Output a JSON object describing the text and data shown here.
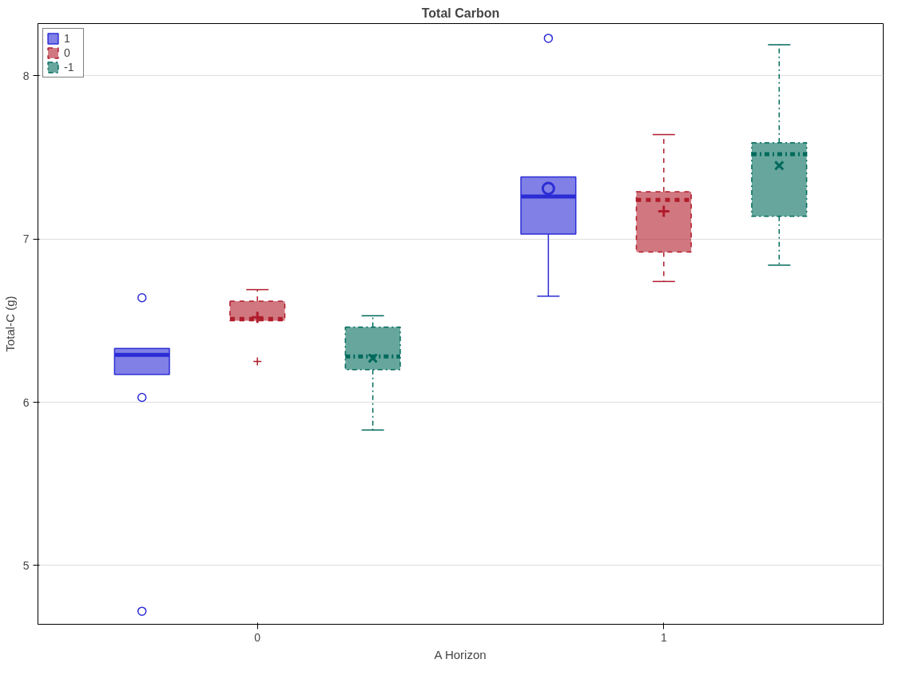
{
  "chart_data": {
    "type": "box",
    "title": "Total Carbon",
    "xlabel": "A Horizon",
    "ylabel": "Total-C (g)",
    "categories": [
      "0",
      "1"
    ],
    "ylim": [
      4.64,
      8.32
    ],
    "yticks": [
      5,
      6,
      7,
      8
    ],
    "grid": "y",
    "legend": "top left",
    "series": [
      {
        "name": "1",
        "color": "#2c2cd6",
        "marker": "circle",
        "line_style": "solid",
        "boxes": [
          {
            "low": 6.17,
            "q1": 6.17,
            "median": 6.29,
            "q3": 6.33,
            "high": 6.33,
            "outliers": [
              6.64,
              6.03,
              4.72
            ]
          },
          {
            "low": 6.65,
            "q1": 7.03,
            "median": 7.26,
            "q3": 7.38,
            "high": 7.38,
            "mean": 7.31,
            "outliers": [
              8.23
            ]
          }
        ]
      },
      {
        "name": "0",
        "color": "#b01c2b",
        "marker": "cross",
        "line_style": "dashed",
        "boxes": [
          {
            "low": 6.5,
            "q1": 6.5,
            "median": 6.51,
            "q3": 6.62,
            "high": 6.69,
            "mean": 6.52,
            "outliers": [
              6.25
            ]
          },
          {
            "low": 6.74,
            "q1": 6.92,
            "median": 7.24,
            "q3": 7.29,
            "high": 7.64,
            "mean": 7.17
          }
        ]
      },
      {
        "name": "-1",
        "color": "#006a5c",
        "marker": "x",
        "line_style": "dashdot",
        "boxes": [
          {
            "low": 5.83,
            "q1": 6.2,
            "median": 6.28,
            "q3": 6.46,
            "high": 6.53,
            "mean": 6.27
          },
          {
            "low": 6.84,
            "q1": 7.14,
            "median": 7.52,
            "q3": 7.59,
            "high": 8.19,
            "mean": 7.45
          }
        ]
      }
    ]
  }
}
